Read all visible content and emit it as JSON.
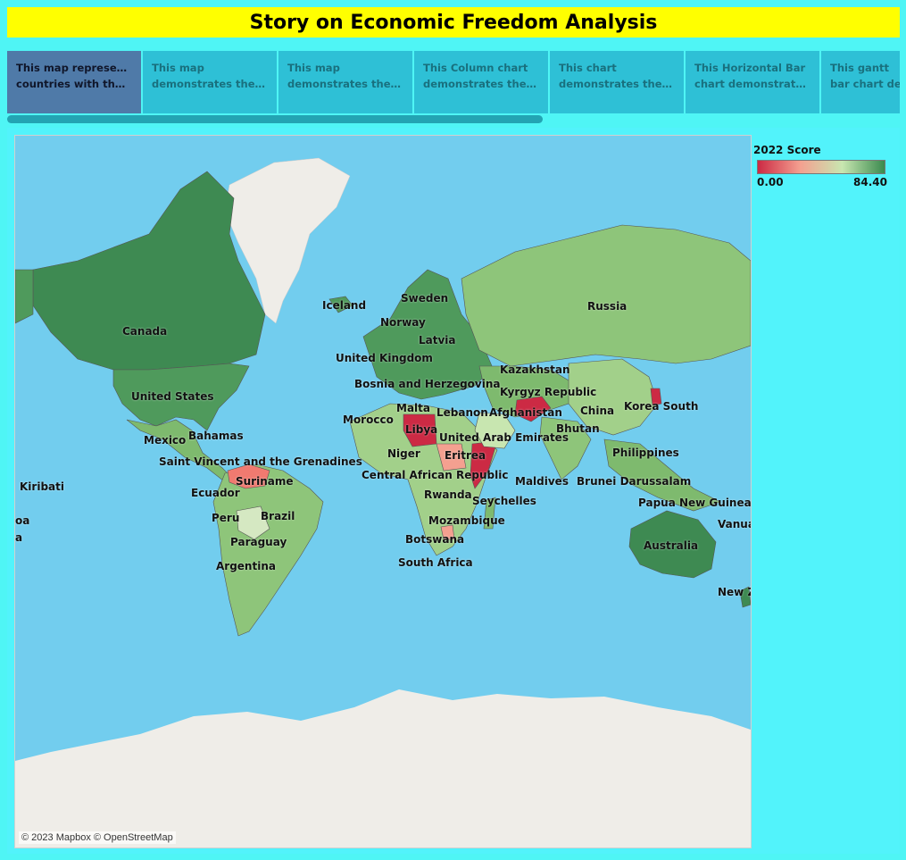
{
  "title": "Story on Economic Freedom Analysis",
  "tabs": [
    {
      "line1": "This map represents",
      "line2": "countries with their l..",
      "active": true
    },
    {
      "line1": "This map",
      "line2": "demonstrates the TO..",
      "active": false
    },
    {
      "line1": "This map",
      "line2": "demonstrates the BO..",
      "active": false
    },
    {
      "line1": "This Column chart",
      "line2": "demonstrates the Un..",
      "active": false
    },
    {
      "line1": "This chart",
      "line2": "demonstrates the eff..",
      "active": false
    },
    {
      "line1": "This Horizontal Bar",
      "line2": "chart demonstrates t..",
      "active": false
    },
    {
      "line1": "This gantt",
      "line2": "bar chart de..",
      "active": false
    }
  ],
  "legend": {
    "title": "2022 Score",
    "min": "0.00",
    "max": "84.40",
    "colors": [
      "#cc2a44",
      "#f4a090",
      "#c8e6b0",
      "#3a8a4e"
    ]
  },
  "map": {
    "attribution": "© 2023 Mapbox © OpenStreetMap",
    "labels": [
      {
        "name": "Canada"
      },
      {
        "name": "United States"
      },
      {
        "name": "Mexico"
      },
      {
        "name": "Bahamas"
      },
      {
        "name": "Saint Vincent and the Grenadines"
      },
      {
        "name": "Kiribati"
      },
      {
        "name": "Ecuador"
      },
      {
        "name": "Suriname"
      },
      {
        "name": "Peru"
      },
      {
        "name": "Brazil"
      },
      {
        "name": "Paraguay"
      },
      {
        "name": "Argentina"
      },
      {
        "name": "oa"
      },
      {
        "name": "a"
      },
      {
        "name": "Iceland"
      },
      {
        "name": "Sweden"
      },
      {
        "name": "Norway"
      },
      {
        "name": "Latvia"
      },
      {
        "name": "United Kingdom"
      },
      {
        "name": "Bosnia and Herzegovina"
      },
      {
        "name": "Malta"
      },
      {
        "name": "Morocco"
      },
      {
        "name": "Libya"
      },
      {
        "name": "Lebanon"
      },
      {
        "name": "Afghanistan"
      },
      {
        "name": "United Arab Emirates"
      },
      {
        "name": "Niger"
      },
      {
        "name": "Eritrea"
      },
      {
        "name": "Central African Republic"
      },
      {
        "name": "Rwanda"
      },
      {
        "name": "Seychelles"
      },
      {
        "name": "Mozambique"
      },
      {
        "name": "Botswana"
      },
      {
        "name": "South Africa"
      },
      {
        "name": "Russia"
      },
      {
        "name": "Kazakhstan"
      },
      {
        "name": "Kyrgyz Republic"
      },
      {
        "name": "China"
      },
      {
        "name": "Korea South"
      },
      {
        "name": "Bhutan"
      },
      {
        "name": "Philippines"
      },
      {
        "name": "Maldives"
      },
      {
        "name": "Brunei Darussalam"
      },
      {
        "name": "Papua New Guinea"
      },
      {
        "name": "Australia"
      },
      {
        "name": "Vanua"
      },
      {
        "name": "New Z"
      }
    ]
  }
}
